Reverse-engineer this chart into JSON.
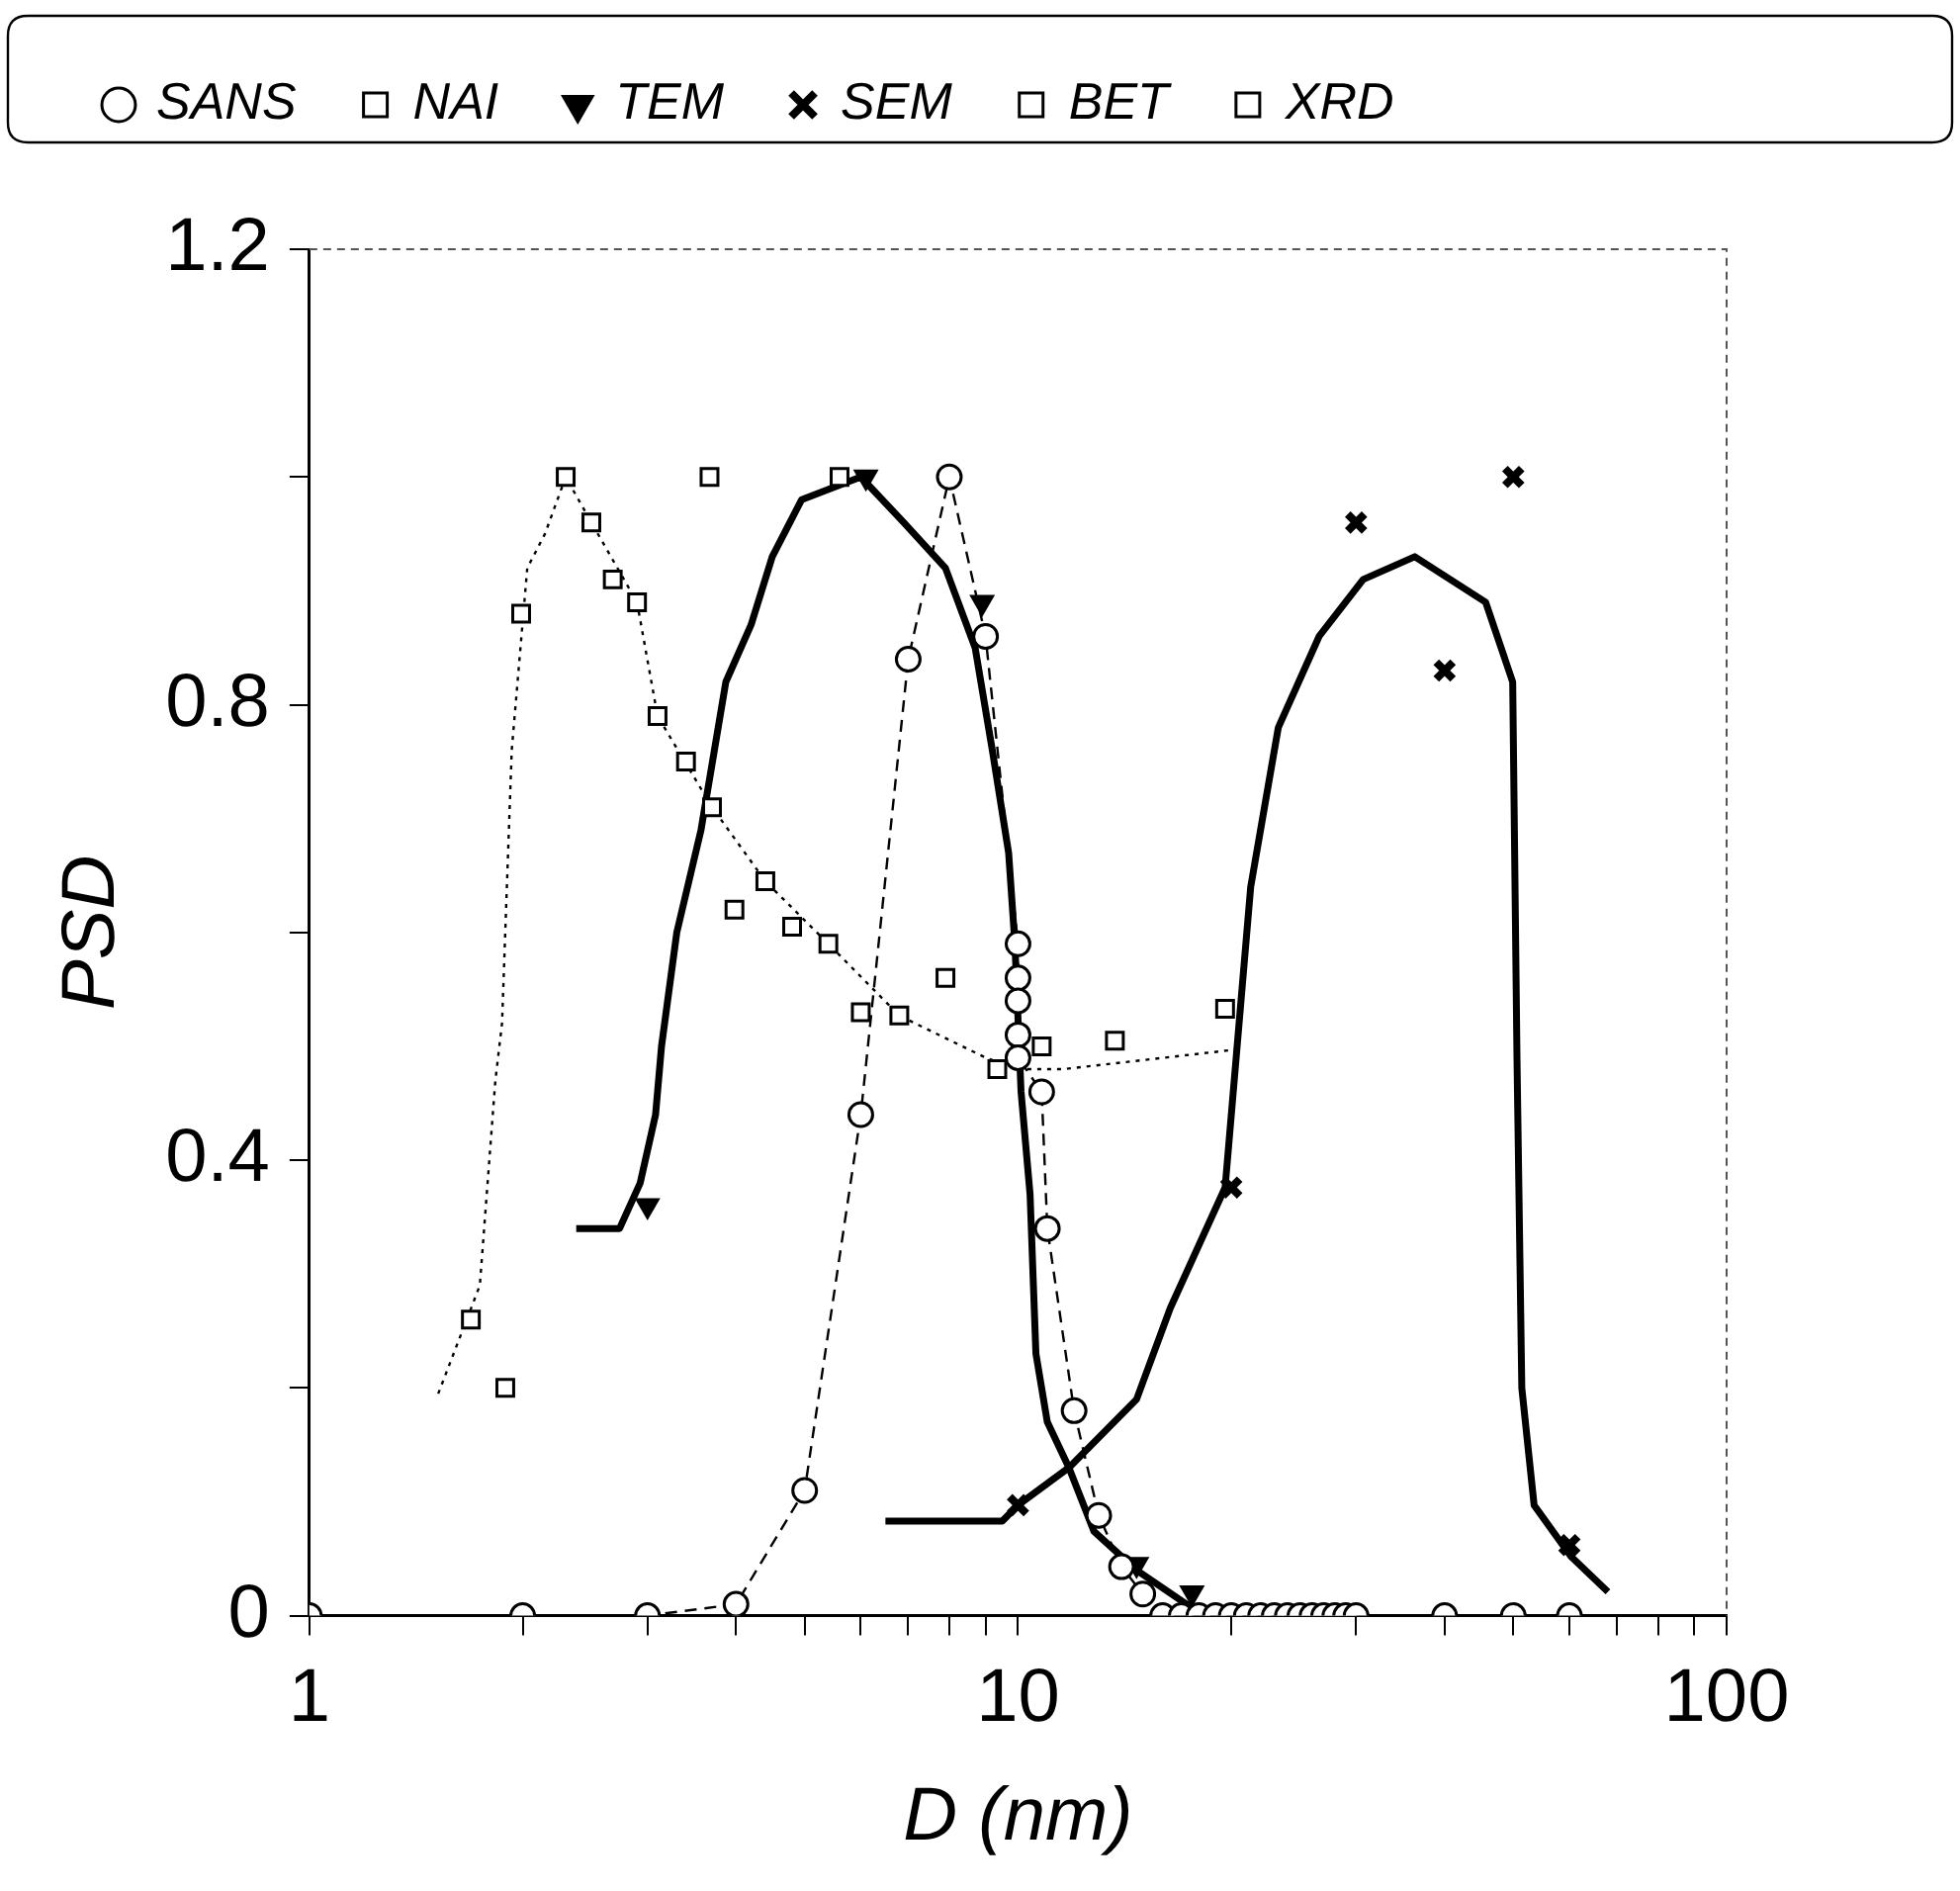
{
  "chart_data": {
    "type": "scatter",
    "xlabel": "D (nm)",
    "ylabel": "PSD",
    "log": "x",
    "legend": "top",
    "grid": false,
    "xlim": [
      1,
      100
    ],
    "xticks": [
      1,
      {
        "value": 2,
        "label": null
      },
      {
        "value": 3,
        "label": null
      },
      {
        "value": 4,
        "label": null
      },
      {
        "value": 5,
        "label": null
      },
      {
        "value": 6,
        "label": null
      },
      {
        "value": 7,
        "label": null
      },
      {
        "value": 8,
        "label": null
      },
      {
        "value": 9,
        "label": null
      },
      10,
      {
        "value": 20,
        "label": null
      },
      {
        "value": 30,
        "label": null
      },
      {
        "value": 40,
        "label": null
      },
      {
        "value": 50,
        "label": null
      },
      {
        "value": 60,
        "label": null
      },
      {
        "value": 70,
        "label": null
      },
      {
        "value": 80,
        "label": null
      },
      {
        "value": 90,
        "label": null
      },
      100
    ],
    "ylim": [
      0,
      1.2
    ],
    "yticks": [
      0,
      {
        "value": 0.2,
        "label": null
      },
      0.4,
      {
        "value": 0.6,
        "label": null
      },
      0.8,
      {
        "value": 1.0,
        "label": null
      },
      1.2
    ],
    "series": [
      {
        "name": "SANS",
        "type": "line",
        "color": "#000000",
        "marker": "circle",
        "line_style": "dashed",
        "x": [
          1,
          2,
          3,
          4,
          5,
          6,
          7,
          8,
          9,
          10,
          10,
          10,
          10,
          10,
          10.8,
          11,
          12,
          13,
          14,
          15,
          16,
          17,
          18,
          19,
          20,
          21,
          22,
          23,
          24,
          25,
          26,
          27,
          28,
          29,
          30,
          40,
          50,
          60
        ],
        "values": [
          0,
          0,
          0,
          0.01,
          0.11,
          0.44,
          0.84,
          1.0,
          0.86,
          0.59,
          0.56,
          0.54,
          0.51,
          0.49,
          0.46,
          0.34,
          0.18,
          0.088,
          0.043,
          0.019,
          0,
          0,
          0,
          0,
          0,
          0,
          0,
          0,
          0,
          0,
          0,
          0,
          0,
          0,
          0,
          0,
          0,
          0
        ]
      },
      {
        "name": "NAI",
        "color": "#000000",
        "marker": "square",
        "x": [
          1.69,
          1.89,
          1.99,
          2.3,
          2.5,
          2.68,
          2.9,
          3.1,
          3.4,
          3.7,
          3.98,
          4.4,
          4.8,
          5.4,
          6.0,
          6.8,
          7.9,
          9.35,
          10.8,
          13.7,
          19.6
        ],
        "values": [
          0.26,
          0.2,
          0.88,
          1.0,
          0.96,
          0.91,
          0.89,
          0.79,
          0.75,
          0.71,
          0.62,
          0.645,
          0.605,
          0.59,
          0.53,
          0.527,
          0.56,
          0.48,
          0.5,
          0.505,
          0.533
        ]
      },
      {
        "name": "TEM",
        "color": "#000000",
        "marker": "triangle",
        "x": [
          3.0,
          6.1,
          8.9,
          14.7,
          17.6
        ],
        "values": [
          0.36,
          1.0,
          0.89,
          0.045,
          0.02
        ]
      },
      {
        "name": "SEM",
        "color": "#000000",
        "marker": "cross",
        "x": [
          10,
          20,
          30,
          40,
          50,
          60
        ],
        "values": [
          0.097,
          0.376,
          0.96,
          0.83,
          1.0,
          0.062
        ]
      },
      {
        "name": "BET",
        "color": "#000000",
        "marker": "square",
        "x": [
          3.67
        ],
        "values": [
          1.0
        ]
      },
      {
        "name": "XRD",
        "color": "#000000",
        "marker": "square",
        "x": [
          5.6
        ],
        "values": [
          1.0
        ]
      },
      {
        "type": "line",
        "color": "#000000",
        "line_style": "dotted",
        "x": [
          1.52,
          1.74,
          1.83,
          1.87,
          1.93,
          2.03,
          2.15,
          2.3,
          2.5,
          2.9,
          3.1,
          3.7,
          4.4,
          5.4,
          6.8,
          9,
          10,
          11.6,
          20.2
        ],
        "values": [
          0.195,
          0.29,
          0.47,
          0.52,
          0.76,
          0.92,
          0.95,
          1.0,
          0.96,
          0.89,
          0.79,
          0.71,
          0.645,
          0.59,
          0.527,
          0.49,
          0.48,
          0.48,
          0.497
        ]
      },
      {
        "type": "line",
        "color": "#000000",
        "line_style": "solid",
        "x": [
          2.38,
          2.74,
          2.93,
          3.08,
          3.14,
          3.3,
          3.57,
          3.87,
          4.2,
          4.5,
          4.95,
          6.0,
          6.9,
          7.9,
          8.7,
          9.2,
          9.7,
          9.9,
          10.1,
          10.4,
          10.6,
          11.0,
          11.8,
          12.8,
          14.7,
          17.3,
          19.8
        ],
        "values": [
          0.34,
          0.34,
          0.38,
          0.44,
          0.5,
          0.6,
          0.69,
          0.82,
          0.87,
          0.93,
          0.98,
          1.0,
          0.96,
          0.92,
          0.85,
          0.76,
          0.67,
          0.59,
          0.46,
          0.37,
          0.23,
          0.17,
          0.13,
          0.074,
          0.04,
          0.01,
          0
        ]
      },
      {
        "type": "line",
        "color": "#000000",
        "line_style": "solid",
        "x": [
          6.5,
          9.5,
          10,
          11.8,
          14.7,
          16.4,
          19.6,
          21.3,
          23.3,
          26.6,
          30.7,
          36.3,
          45.7,
          49.9,
          50.6,
          51.4,
          53.5,
          60.3,
          68
        ],
        "values": [
          0.083,
          0.083,
          0.097,
          0.13,
          0.19,
          0.27,
          0.376,
          0.64,
          0.78,
          0.86,
          0.91,
          0.93,
          0.89,
          0.82,
          0.49,
          0.2,
          0.097,
          0.052,
          0.021
        ]
      }
    ]
  }
}
